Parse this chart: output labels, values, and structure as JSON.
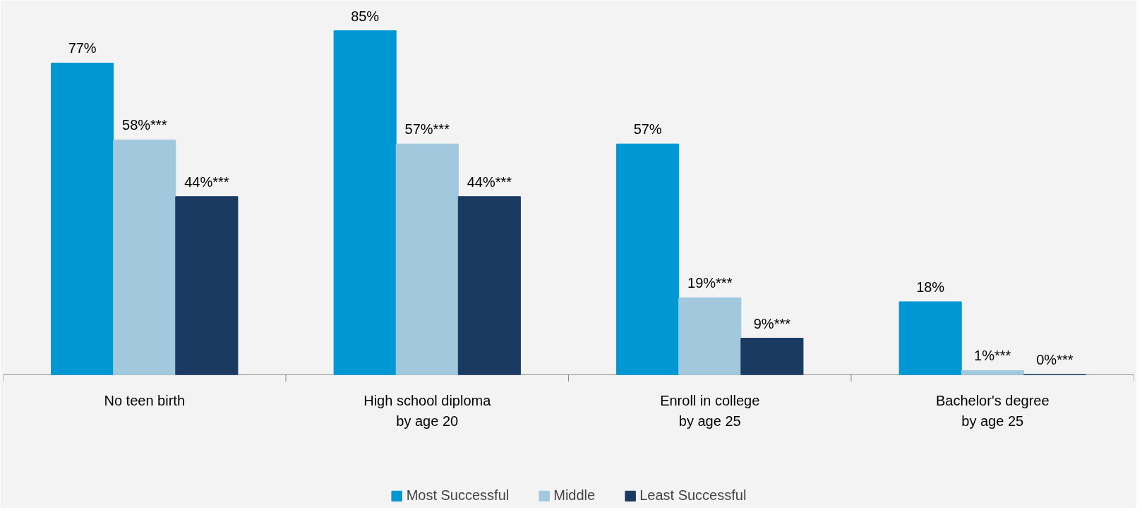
{
  "chart_data": {
    "type": "bar",
    "categories": [
      "No teen birth",
      "High school diploma\nby age 20",
      "Enroll in college\nby age 25",
      "Bachelor's degree\nby age 25"
    ],
    "series": [
      {
        "name": "Most Successful",
        "color": "#0097d4",
        "values": [
          77,
          85,
          57,
          18
        ],
        "value_labels": [
          "77%",
          "85%",
          "57%",
          "18%"
        ]
      },
      {
        "name": "Middle",
        "color": "#a2c8de",
        "values": [
          58,
          57,
          19,
          1
        ],
        "value_labels": [
          "58%***",
          "57%***",
          "19%***",
          "1%***"
        ]
      },
      {
        "name": "Least Successful",
        "color": "#1a3a62",
        "values": [
          44,
          44,
          9,
          0
        ],
        "value_labels": [
          "44%***",
          "44%***",
          "9%***",
          "0%***"
        ]
      }
    ],
    "legend": "bottom"
  }
}
